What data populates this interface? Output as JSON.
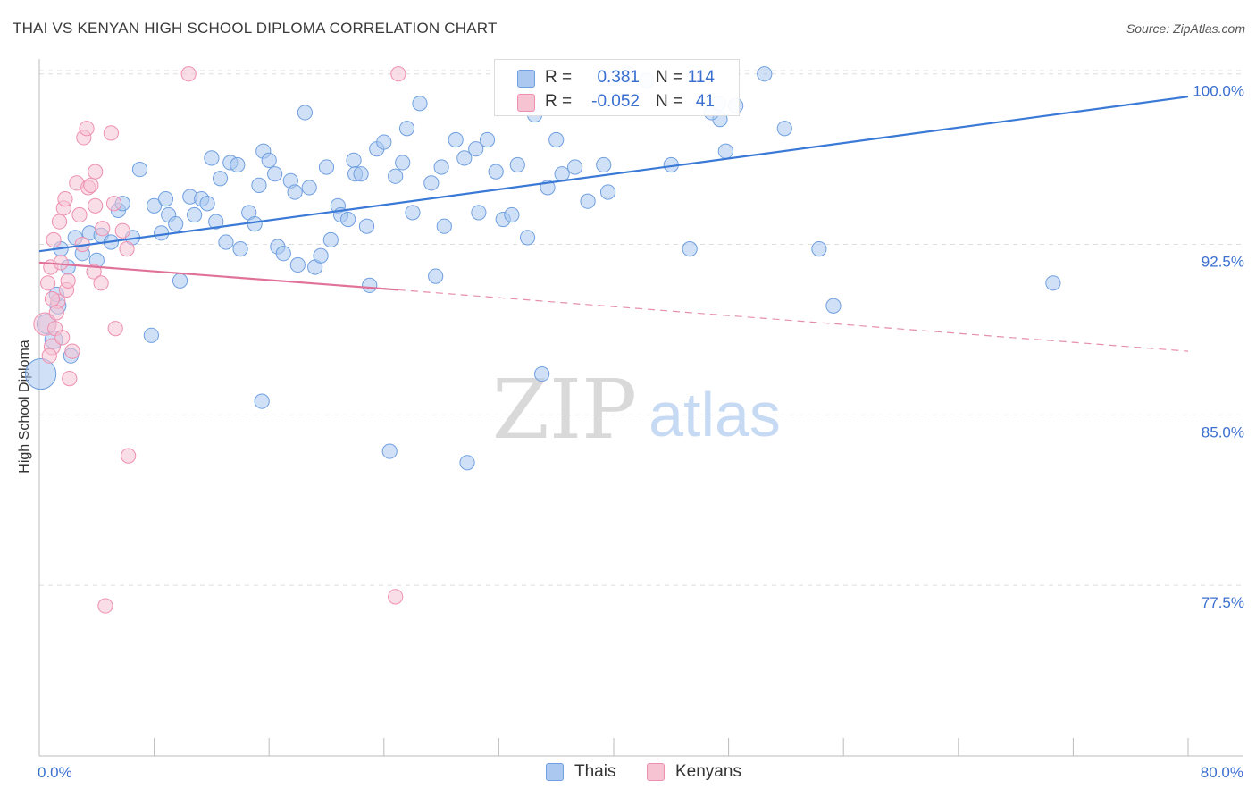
{
  "title": "THAI VS KENYAN HIGH SCHOOL DIPLOMA CORRELATION CHART",
  "source": "Source: ZipAtlas.com",
  "watermark": {
    "zip": "ZIP",
    "atlas": "atlas"
  },
  "colors": {
    "blue": "#3a79d6",
    "blue_fill": "#aac8f0",
    "blue_stroke": "#6f9fe0",
    "pink": "#e0729a",
    "pink_fill": "#f6c3d3",
    "pink_stroke": "#ee8fb0",
    "tick_label": "#3a6fd0",
    "grid": "#dedede"
  },
  "legend": {
    "rows": [
      {
        "r_label": "R =",
        "r_value": "0.381",
        "n_label": "N =",
        "n_value": "114"
      },
      {
        "r_label": "R =",
        "r_value": "-0.052",
        "n_label": "N =",
        "n_value": "41"
      }
    ]
  },
  "bottom_legend": {
    "thais": "Thais",
    "kenyans": "Kenyans"
  },
  "chart_data": {
    "type": "scatter",
    "xlabel": "",
    "ylabel": "High School Diploma",
    "xlim": [
      0,
      80
    ],
    "ylim": [
      70.0,
      100.5
    ],
    "x_ticks": [
      {
        "v": 0,
        "label": "0.0%"
      },
      {
        "v": 80,
        "label": "80.0%"
      }
    ],
    "x_minor_ticks": [
      8,
      16,
      24,
      32,
      40,
      48,
      56,
      64,
      72
    ],
    "y_ticks": [
      {
        "v": 100.0,
        "label": "100.0%"
      },
      {
        "v": 92.5,
        "label": "92.5%"
      },
      {
        "v": 85.0,
        "label": "85.0%"
      },
      {
        "v": 77.5,
        "label": "77.5%"
      }
    ],
    "grid": true,
    "legend_position": "top-center",
    "series": [
      {
        "name": "Thais",
        "color": "#3a79d6",
        "trend": {
          "x0": 0,
          "y0": 92.2,
          "x1": 80,
          "y1": 99.0
        },
        "points": [
          [
            0.1,
            86.8,
            1.9
          ],
          [
            0.5,
            89.0,
            1.2
          ],
          [
            1.0,
            88.3,
            1.1
          ],
          [
            1.3,
            89.8,
            1.0
          ],
          [
            1.2,
            90.3,
            0.9
          ],
          [
            1.5,
            92.3,
            0.9
          ],
          [
            2.0,
            91.5,
            0.9
          ],
          [
            2.2,
            87.6,
            0.9
          ],
          [
            2.5,
            92.8,
            0.9
          ],
          [
            3.0,
            92.1,
            0.9
          ],
          [
            3.5,
            93.0,
            0.9
          ],
          [
            4.0,
            91.8,
            0.9
          ],
          [
            4.3,
            92.9,
            0.9
          ],
          [
            5.0,
            92.6,
            0.9
          ],
          [
            5.5,
            94.0,
            0.9
          ],
          [
            5.8,
            94.3,
            0.9
          ],
          [
            6.5,
            92.8,
            0.9
          ],
          [
            7.0,
            95.8,
            0.9
          ],
          [
            8.0,
            94.2,
            0.9
          ],
          [
            7.8,
            88.5,
            0.9
          ],
          [
            8.5,
            93.0,
            0.9
          ],
          [
            8.8,
            94.5,
            0.9
          ],
          [
            9.0,
            93.8,
            0.9
          ],
          [
            9.5,
            93.4,
            0.9
          ],
          [
            9.8,
            90.9,
            0.9
          ],
          [
            10.5,
            94.6,
            0.9
          ],
          [
            10.8,
            93.8,
            0.9
          ],
          [
            11.3,
            94.5,
            0.9
          ],
          [
            11.7,
            94.3,
            0.9
          ],
          [
            12.3,
            93.5,
            0.9
          ],
          [
            12.0,
            96.3,
            0.9
          ],
          [
            12.6,
            95.4,
            0.9
          ],
          [
            13.0,
            92.6,
            0.9
          ],
          [
            13.3,
            96.1,
            0.9
          ],
          [
            13.8,
            96.0,
            0.9
          ],
          [
            14.0,
            92.3,
            0.9
          ],
          [
            14.6,
            93.9,
            0.9
          ],
          [
            15.0,
            93.4,
            0.9
          ],
          [
            15.3,
            95.1,
            0.9
          ],
          [
            15.5,
            85.6,
            0.9
          ],
          [
            15.6,
            96.6,
            0.9
          ],
          [
            16.0,
            96.2,
            0.9
          ],
          [
            16.4,
            95.6,
            0.9
          ],
          [
            16.6,
            92.4,
            0.9
          ],
          [
            17.0,
            92.1,
            0.9
          ],
          [
            17.5,
            95.3,
            0.9
          ],
          [
            17.8,
            94.8,
            0.9
          ],
          [
            18.0,
            91.6,
            0.9
          ],
          [
            18.5,
            98.3,
            0.9
          ],
          [
            18.8,
            95.0,
            0.9
          ],
          [
            19.2,
            91.5,
            0.9
          ],
          [
            19.6,
            92.0,
            0.9
          ],
          [
            20.0,
            95.9,
            0.9
          ],
          [
            20.3,
            92.7,
            0.9
          ],
          [
            20.8,
            94.2,
            0.9
          ],
          [
            21.0,
            93.8,
            0.9
          ],
          [
            21.5,
            93.6,
            0.9
          ],
          [
            21.9,
            96.2,
            0.9
          ],
          [
            22.0,
            95.6,
            0.9
          ],
          [
            22.4,
            95.6,
            0.9
          ],
          [
            22.8,
            93.3,
            0.9
          ],
          [
            23.0,
            90.7,
            0.9
          ],
          [
            23.5,
            96.7,
            0.9
          ],
          [
            24.0,
            97.0,
            0.9
          ],
          [
            24.4,
            83.4,
            0.9
          ],
          [
            24.8,
            95.5,
            0.9
          ],
          [
            25.3,
            96.1,
            0.9
          ],
          [
            25.6,
            97.6,
            0.9
          ],
          [
            26.0,
            93.9,
            0.9
          ],
          [
            26.5,
            98.7,
            0.9
          ],
          [
            27.3,
            95.2,
            0.9
          ],
          [
            27.6,
            91.1,
            0.9
          ],
          [
            28.0,
            95.9,
            0.9
          ],
          [
            28.2,
            93.3,
            0.9
          ],
          [
            29.0,
            97.1,
            0.9
          ],
          [
            29.6,
            96.3,
            0.9
          ],
          [
            29.8,
            82.9,
            0.9
          ],
          [
            30.4,
            96.7,
            0.9
          ],
          [
            30.6,
            93.9,
            0.9
          ],
          [
            31.2,
            97.1,
            0.9
          ],
          [
            31.8,
            95.7,
            0.9
          ],
          [
            32.3,
            93.6,
            0.9
          ],
          [
            32.9,
            93.8,
            0.9
          ],
          [
            33.3,
            96.0,
            0.9
          ],
          [
            33.8,
            99.4,
            0.9
          ],
          [
            34.0,
            92.8,
            0.9
          ],
          [
            34.5,
            98.2,
            0.9
          ],
          [
            34.3,
            98.6,
            0.9
          ],
          [
            35.0,
            86.8,
            0.9
          ],
          [
            35.4,
            95.0,
            0.9
          ],
          [
            36.0,
            97.1,
            0.9
          ],
          [
            36.4,
            95.6,
            0.9
          ],
          [
            37.3,
            95.9,
            0.9
          ],
          [
            38.2,
            94.4,
            0.9
          ],
          [
            39.3,
            96.0,
            0.9
          ],
          [
            39.6,
            94.8,
            0.9
          ],
          [
            40.0,
            99.8,
            0.9
          ],
          [
            41.0,
            100.0,
            0.9
          ],
          [
            42.3,
            99.7,
            0.9
          ],
          [
            44.0,
            96.0,
            0.9
          ],
          [
            45.3,
            92.3,
            0.9
          ],
          [
            47.4,
            98.0,
            0.9
          ],
          [
            47.8,
            96.6,
            0.9
          ],
          [
            46.8,
            98.3,
            0.9
          ],
          [
            47.3,
            98.7,
            0.9
          ],
          [
            48.5,
            98.6,
            0.9
          ],
          [
            50.5,
            100.0,
            0.9
          ],
          [
            51.9,
            97.6,
            0.9
          ],
          [
            54.3,
            92.3,
            0.9
          ],
          [
            55.3,
            89.8,
            0.9
          ],
          [
            70.6,
            90.8,
            0.9
          ]
        ]
      },
      {
        "name": "Kenyans",
        "color": "#e0729a",
        "trend": {
          "x0": 0,
          "y0": 91.7,
          "x1": 25,
          "y1": 90.5,
          "dash_x1": 80,
          "dash_y1": 87.8
        },
        "points": [
          [
            0.4,
            89.0,
            1.4
          ],
          [
            0.6,
            90.8,
            0.9
          ],
          [
            0.8,
            91.5,
            0.9
          ],
          [
            0.9,
            88.0,
            1.0
          ],
          [
            1.0,
            92.7,
            0.9
          ],
          [
            1.1,
            88.8,
            0.9
          ],
          [
            1.3,
            90.0,
            0.9
          ],
          [
            1.4,
            93.5,
            0.9
          ],
          [
            1.5,
            91.7,
            0.9
          ],
          [
            1.6,
            88.4,
            0.9
          ],
          [
            1.7,
            94.1,
            0.9
          ],
          [
            1.8,
            94.5,
            0.9
          ],
          [
            1.9,
            90.5,
            0.9
          ],
          [
            2.1,
            86.6,
            0.9
          ],
          [
            2.3,
            87.8,
            0.9
          ],
          [
            2.6,
            95.2,
            0.9
          ],
          [
            2.8,
            93.8,
            0.9
          ],
          [
            3.0,
            92.5,
            0.9
          ],
          [
            3.1,
            97.2,
            0.9
          ],
          [
            3.3,
            97.6,
            0.9
          ],
          [
            3.4,
            95.0,
            0.9
          ],
          [
            3.6,
            95.1,
            0.9
          ],
          [
            3.8,
            91.3,
            0.9
          ],
          [
            3.9,
            95.7,
            0.9
          ],
          [
            3.9,
            94.2,
            0.9
          ],
          [
            4.3,
            90.8,
            0.9
          ],
          [
            4.4,
            93.2,
            0.9
          ],
          [
            4.6,
            76.6,
            0.9
          ],
          [
            5.0,
            97.4,
            0.9
          ],
          [
            5.2,
            94.3,
            0.9
          ],
          [
            5.3,
            88.8,
            0.9
          ],
          [
            5.8,
            93.1,
            0.9
          ],
          [
            6.1,
            92.3,
            0.9
          ],
          [
            6.2,
            83.2,
            0.9
          ],
          [
            10.4,
            100.0,
            0.9
          ],
          [
            24.8,
            77.0,
            0.9
          ],
          [
            25.0,
            100.0,
            0.9
          ],
          [
            0.9,
            90.1,
            0.9
          ],
          [
            2.0,
            90.9,
            0.9
          ],
          [
            1.2,
            89.5,
            0.9
          ],
          [
            0.7,
            87.6,
            0.9
          ]
        ]
      }
    ]
  }
}
